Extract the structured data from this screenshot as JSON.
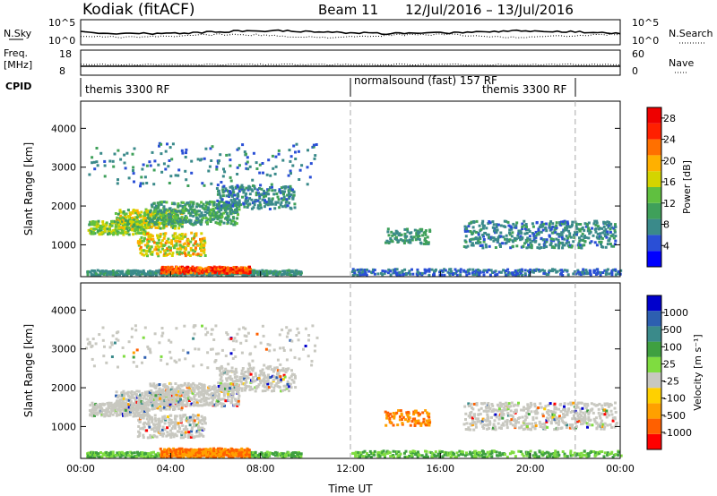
{
  "header": {
    "station": "Kodiak (fitACF)",
    "beam": "Beam 11",
    "date_range": "12/Jul/2016 – 13/Jul/2016"
  },
  "top_panels": {
    "nsky_label": "N.Sky",
    "nsky_ticks": [
      "10^5",
      "10^0"
    ],
    "nsearch_label": "N.Search",
    "nsearch_ticks": [
      "10^5",
      "10^0"
    ],
    "freq_label": "Freq.",
    "freq_unit": "[MHz]",
    "freq_ticks": [
      "18",
      "8"
    ],
    "nave_label": "Nave",
    "nave_ticks": [
      "60",
      "0"
    ],
    "cpid_label": "CPID",
    "cpid_segments": [
      {
        "label": "themis 3300 RF",
        "start_hour": 0
      },
      {
        "label": "normalsound (fast) 157 RF",
        "start_hour": 12
      },
      {
        "label": "themis 3300 RF",
        "start_hour": 22
      }
    ]
  },
  "chart_data": [
    {
      "type": "heatmap",
      "name": "power",
      "ylabel": "Slant Range [km]",
      "xlabel": "",
      "x_range_hours": [
        0,
        24
      ],
      "ylim": [
        180,
        4700
      ],
      "yticks": [
        "1000",
        "2000",
        "3000",
        "4000"
      ],
      "colorbar": {
        "label": "Power [dB]",
        "ticks": [
          "4",
          "8",
          "12",
          "16",
          "20",
          "24",
          "28"
        ],
        "range": [
          0,
          30
        ],
        "colors": [
          "#0000ff",
          "#2a4fd6",
          "#3a8a8a",
          "#3fa05a",
          "#60c040",
          "#d4d400",
          "#ffb000",
          "#ff7000",
          "#ff2000",
          "#ee0000"
        ]
      },
      "vertical_markers_hours": [
        12,
        22
      ]
    },
    {
      "type": "heatmap",
      "name": "velocity",
      "ylabel": "Slant Range [km]",
      "xlabel": "Time UT",
      "x_range_hours": [
        0,
        24
      ],
      "ylim": [
        180,
        4700
      ],
      "yticks": [
        "1000",
        "2000",
        "3000",
        "4000"
      ],
      "xticks": [
        "00:00",
        "04:00",
        "08:00",
        "12:00",
        "16:00",
        "20:00",
        "00:00"
      ],
      "colorbar": {
        "label": "Velocity [m s⁻¹]",
        "ticks": [
          "1000",
          "500",
          "100",
          "25",
          "-25",
          "-100",
          "-500",
          "-1000"
        ],
        "colors": [
          "#0000cc",
          "#2d5fb0",
          "#3a8a8a",
          "#3fa040",
          "#7fdc40",
          "#c8c8c0",
          "#ffd000",
          "#ffa000",
          "#ff6000",
          "#ff0000"
        ]
      },
      "vertical_markers_hours": [
        12,
        22
      ]
    }
  ]
}
